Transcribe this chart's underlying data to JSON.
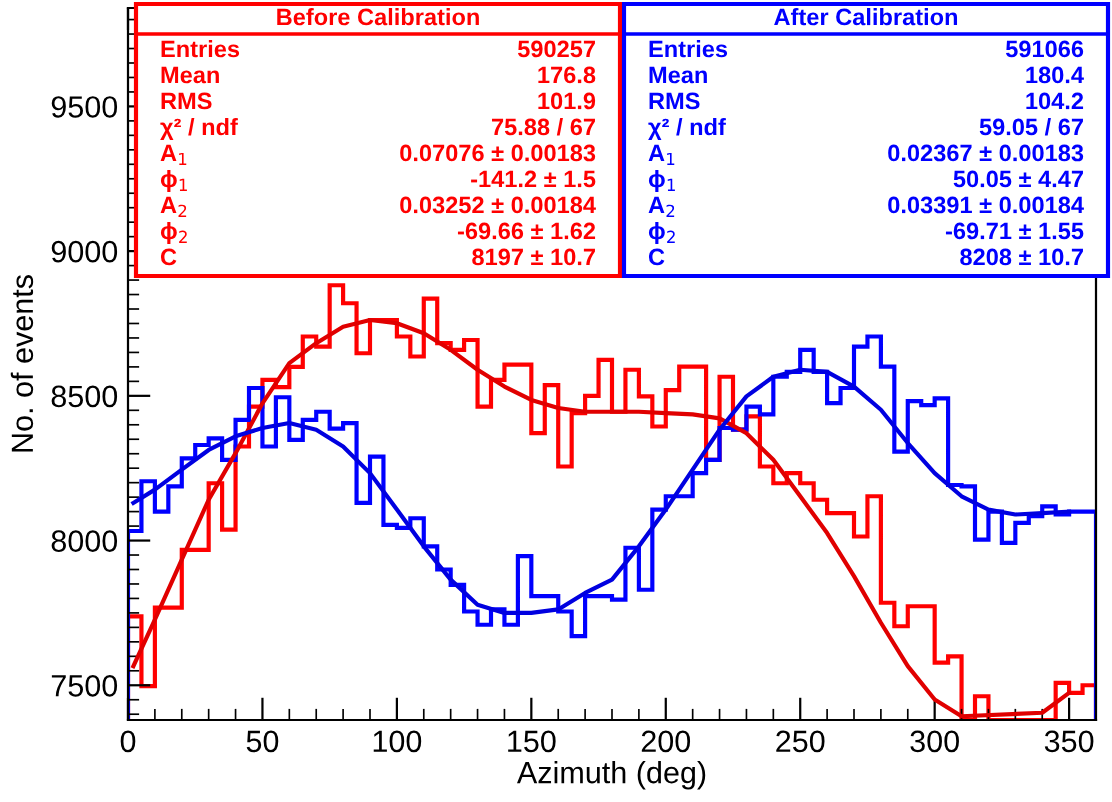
{
  "chart_data": {
    "type": "histogram",
    "xlabel": "Azimuth (deg)",
    "ylabel": "No. of events",
    "xlim": [
      0,
      360
    ],
    "xticks": [
      0,
      50,
      100,
      150,
      200,
      250,
      300,
      350
    ],
    "ylim": [
      7380,
      9840
    ],
    "yticks": [
      7500,
      8000,
      8500,
      9000,
      9500
    ],
    "grid": false,
    "legend": false,
    "bins": [
      0,
      5,
      10,
      15,
      20,
      25,
      30,
      35,
      40,
      45,
      50,
      55,
      60,
      65,
      70,
      75,
      80,
      85,
      90,
      95,
      100,
      105,
      110,
      115,
      120,
      125,
      130,
      135,
      140,
      145,
      150,
      155,
      160,
      165,
      170,
      175,
      180,
      185,
      190,
      195,
      200,
      205,
      210,
      215,
      220,
      225,
      230,
      235,
      240,
      245,
      250,
      255,
      260,
      265,
      270,
      275,
      280,
      285,
      290,
      295,
      300,
      305,
      310,
      315,
      320,
      325,
      330,
      335,
      340,
      345,
      350,
      355,
      360
    ],
    "series": [
      {
        "name": "Before Calibration",
        "color": "#ff0000",
        "values": [
          7738,
          7497,
          7768,
          7768,
          7968,
          7968,
          8198,
          8038,
          8325,
          8463,
          8555,
          8530,
          8600,
          8705,
          8670,
          8882,
          8820,
          8647,
          8762,
          8762,
          8705,
          8636,
          8836,
          8682,
          8659,
          8693,
          8463,
          8555,
          8608,
          8608,
          8371,
          8537,
          8256,
          8440,
          8500,
          8624,
          8445,
          8590,
          8498,
          8394,
          8520,
          8601,
          8601,
          8279,
          8566,
          8383,
          8429,
          8256,
          8198,
          8233,
          8198,
          8141,
          8095,
          8095,
          8014,
          8153,
          7785,
          7704,
          7773,
          7773,
          7578,
          7600,
          null,
          7462,
          null,
          null,
          null,
          null,
          null,
          7508,
          7474,
          7500
        ]
      },
      {
        "name": "After Calibration",
        "color": "#0000ff",
        "values": [
          8033,
          8205,
          8100,
          8187,
          8284,
          8330,
          8353,
          8279,
          8417,
          8527,
          8325,
          8495,
          8348,
          8417,
          8445,
          8387,
          8406,
          8130,
          8290,
          8054,
          8044,
          8077,
          7980,
          7900,
          7847,
          7755,
          7709,
          7762,
          7709,
          7946,
          7808,
          7808,
          7755,
          7670,
          7808,
          7808,
          7796,
          7975,
          7830,
          8107,
          8153,
          8153,
          8233,
          8279,
          8389,
          8383,
          8463,
          8436,
          8566,
          8583,
          8659,
          8583,
          8475,
          8527,
          8670,
          8705,
          8601,
          8307,
          8482,
          8468,
          8491,
          8192,
          8187,
          8003,
          8100,
          7992,
          8061,
          8084,
          8118,
          8090,
          8100,
          8100
        ]
      },
      {
        "type": "line",
        "color": "#e00000",
        "x": [
          2,
          10,
          20,
          30,
          40,
          50,
          60,
          70,
          80,
          90,
          100,
          110,
          120,
          130,
          140,
          150,
          160,
          170,
          180,
          190,
          200,
          210,
          220,
          230,
          240,
          250,
          260,
          270,
          280,
          290,
          300,
          310,
          340,
          350
        ],
        "values": [
          7566,
          7727,
          7934,
          8141,
          8302,
          8474,
          8613,
          8682,
          8739,
          8762,
          8751,
          8716,
          8659,
          8590,
          8532,
          8486,
          8458,
          8445,
          8445,
          8445,
          8440,
          8436,
          8422,
          8371,
          8279,
          8153,
          8026,
          7877,
          7716,
          7566,
          7451,
          7393,
          7405,
          7474
        ]
      },
      {
        "type": "line",
        "color": "#0000e0",
        "x": [
          2,
          10,
          20,
          30,
          40,
          50,
          60,
          70,
          80,
          90,
          100,
          110,
          120,
          130,
          140,
          150,
          160,
          170,
          180,
          190,
          200,
          210,
          220,
          230,
          240,
          250,
          260,
          270,
          280,
          290,
          300,
          310,
          320,
          330,
          340,
          350
        ],
        "values": [
          8130,
          8176,
          8245,
          8313,
          8360,
          8389,
          8406,
          8383,
          8325,
          8233,
          8107,
          7980,
          7865,
          7778,
          7750,
          7750,
          7762,
          7819,
          7865,
          7980,
          8107,
          8245,
          8383,
          8498,
          8566,
          8590,
          8583,
          8532,
          8452,
          8337,
          8233,
          8153,
          8107,
          8090,
          8095,
          8100
        ]
      }
    ],
    "annotations": [
      "Entries",
      "590257",
      "Mean",
      "176.8",
      "RMS",
      "101.9",
      "χ² / ndf",
      "75.88 / 67",
      "A$_{1}$",
      "0.07076 ± 0.00183",
      "ϕ$_{1}$",
      "-141.2 ± 1.5",
      "A$_{2}$",
      "0.03252 ± 0.00184",
      "ϕ$_{2}$",
      "-69.66 ± 1.62",
      "C",
      "8197 ± 10.7",
      "Entries",
      "591066",
      "Mean",
      "180.4",
      "RMS",
      "104.2",
      "χ² / ndf",
      "59.05 / 67",
      "A$_{1}$",
      "0.02367 ± 0.00183",
      "ϕ$_{1}$",
      "50.05 ± 4.47",
      "A$_{2}$",
      "0.03391 ± 0.00184",
      "ϕ$_{2}$",
      "-69.71 ± 1.55",
      "C",
      "8208 ± 10.7"
    ]
  }
}
